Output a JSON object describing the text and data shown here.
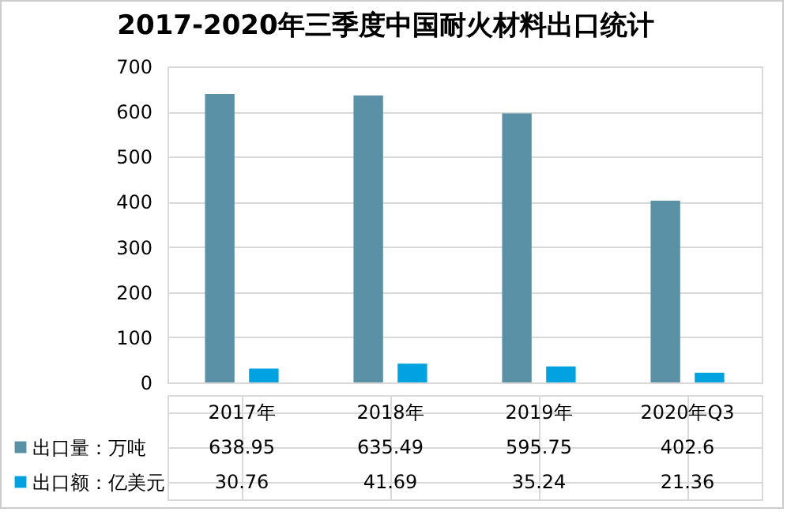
{
  "chart_data": {
    "type": "bar",
    "title": "2017-2020年三季度中国耐火材料出口统计",
    "categories": [
      "2017年",
      "2018年",
      "2019年",
      "2020年Q3"
    ],
    "series": [
      {
        "name": "出口量：万吨",
        "color": "#5b91a7",
        "values": [
          638.95,
          635.49,
          595.75,
          402.6
        ]
      },
      {
        "name": "出口额：亿美元",
        "color": "#00a3e0",
        "values": [
          30.76,
          41.69,
          35.24,
          21.36
        ]
      }
    ],
    "ylim": [
      0,
      700
    ],
    "yticks": [
      0,
      100,
      200,
      300,
      400,
      500,
      600,
      700
    ],
    "grid": "y",
    "data_labels": true,
    "legend": "bottom"
  }
}
